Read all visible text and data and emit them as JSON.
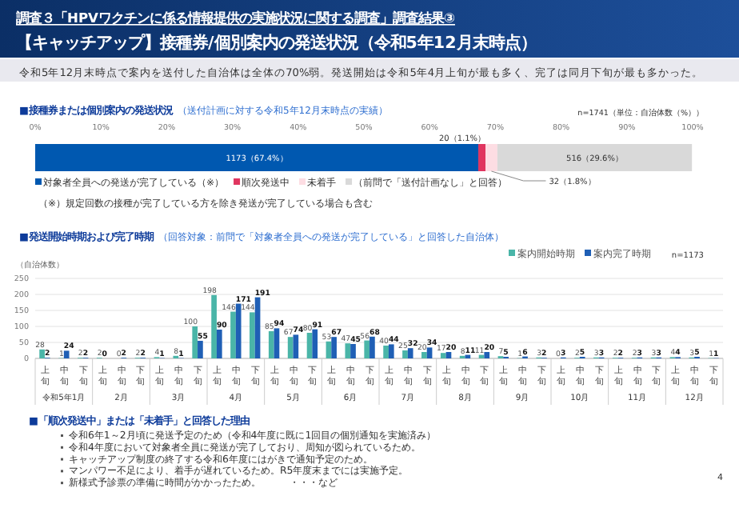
{
  "chart_data": [
    {
      "type": "other",
      "title": "調査３「HPVワクチンに係る情報提供の実施状況に関する調査」調査結果③",
      "subtitle": "【キャッチアップ】接種券/個別案内の発送状況（令和5年12月末時点）",
      "annotations": [
        "令和5年12月末時点で案内を送付した自治体は全体の70%弱。発送開始は令和5年4月上旬が最も多く、完了は同月下旬が最も多かった。"
      ]
    },
    {
      "type": "bar",
      "orientation": "horizontal",
      "stacked": true,
      "title": "■接種券または個別案内の発送状況",
      "subtitle": "（送付計画に対する令和5年12月末時点の実績）",
      "categories": [
        null
      ],
      "series": [
        {
          "name": "対象者全員への発送が完了している（※）",
          "color": "#0058b0",
          "values": [
            67.4
          ],
          "value_labels": [
            "1173（67.4%）"
          ]
        },
        {
          "name": "順次発送中",
          "color": "#e0355f",
          "values": [
            1.1
          ],
          "value_labels": [
            "20（1.1%）"
          ]
        },
        {
          "name": "未着手",
          "color": "#fddde3",
          "values": [
            1.8
          ],
          "value_labels": [
            "32（1.8%）"
          ]
        },
        {
          "name": "（前問で「送付計画なし」と回答）",
          "color": "#d9d9d9",
          "values": [
            29.6
          ],
          "value_labels": [
            "516（29.6%）"
          ]
        }
      ],
      "xlim": [
        0,
        100
      ],
      "xticks": [
        {
          "value": 0,
          "label": "0%"
        },
        {
          "value": 10,
          "label": "10%"
        },
        {
          "value": 20,
          "label": "20%"
        },
        {
          "value": 30,
          "label": "30%"
        },
        {
          "value": 40,
          "label": "40%"
        },
        {
          "value": 50,
          "label": "50%"
        },
        {
          "value": 60,
          "label": "60%"
        },
        {
          "value": 70,
          "label": "70%"
        },
        {
          "value": 80,
          "label": "80%"
        },
        {
          "value": 90,
          "label": "90%"
        },
        {
          "value": 100,
          "label": "100%"
        }
      ],
      "legend": "bottom",
      "annotations": [
        "n=1741（単位：自治体数（%））",
        "（※）規定回数の接種が完了している方を除き発送が完了している場合も含む"
      ]
    },
    {
      "type": "bar",
      "title": "■発送開始時期および完了時期",
      "subtitle": "（回答対象：前問で「対象者全員への発送が完了している」と回答した自治体）",
      "ylabel": "（自治体数）",
      "categories": [
        "上旬",
        "中旬",
        "下旬",
        "上旬",
        "中旬",
        "下旬",
        "上旬",
        "中旬",
        "下旬",
        "上旬",
        "中旬",
        "下旬",
        "上旬",
        "中旬",
        "下旬",
        "上旬",
        "中旬",
        "下旬",
        "上旬",
        "中旬",
        "下旬",
        "上旬",
        "中旬",
        "下旬",
        "上旬",
        "中旬",
        "下旬",
        "上旬",
        "中旬",
        "下旬",
        "上旬",
        "中旬",
        "下旬",
        "上旬",
        "中旬",
        "下旬"
      ],
      "series": [
        {
          "name": "案内開始時期",
          "color": "#4ab5a8",
          "values": [
            28,
            1,
            2,
            2,
            0,
            2,
            4,
            8,
            100,
            198,
            146,
            144,
            85,
            67,
            80,
            53,
            47,
            56,
            40,
            25,
            20,
            17,
            8,
            11,
            7,
            1,
            3,
            0,
            2,
            3,
            2,
            2,
            3,
            4,
            3,
            1
          ]
        },
        {
          "name": "案内完了時期",
          "color": "#1f5fb5",
          "values": [
            2,
            24,
            2,
            0,
            2,
            2,
            1,
            1,
            55,
            90,
            171,
            191,
            94,
            74,
            91,
            67,
            45,
            68,
            44,
            32,
            34,
            20,
            11,
            20,
            5,
            6,
            2,
            3,
            5,
            3,
            2,
            3,
            3,
            4,
            5,
            1
          ]
        }
      ],
      "ylim": [
        0,
        250
      ],
      "yticks": [
        0,
        50,
        100,
        150,
        200,
        250
      ],
      "grid": "y",
      "legend": "top right",
      "data_labels": true,
      "annotations": [
        "令和5年1月",
        "2月",
        "3月",
        "4月",
        "5月",
        "6月",
        "7月",
        "8月",
        "9月",
        "10月",
        "11月",
        "12月",
        "n=1173"
      ]
    },
    {
      "type": "other",
      "title": "■「順次発送中」または「未着手」と回答した理由",
      "annotations": [
        "令和6年1～2月頃に発送予定のため（令和4年度に既に1回目の個別通知を実施済み）",
        "令和4年度において対象者全員に発送が完了しており、周知が図られているため。",
        "キャッチアップ制度の終了する令和6年度にはがきで通知予定のため。",
        "マンパワー不足により、着手が遅れているため。R5年度末までには実施予定。",
        "新様式予診票の準備に時間がかかったため。　　　・・・など",
        "4"
      ]
    }
  ]
}
